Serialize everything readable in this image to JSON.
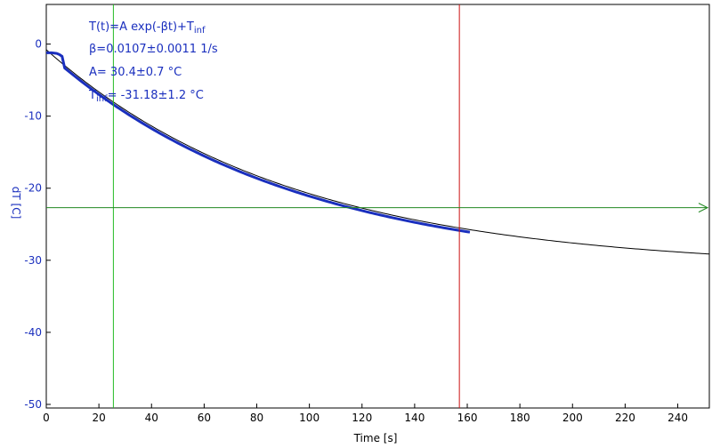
{
  "chart_data": {
    "type": "line",
    "xlabel": "Time [s]",
    "ylabel": "dT [C]",
    "xlim": [
      0,
      252
    ],
    "ylim": [
      -50.5,
      5.5
    ],
    "x_ticks": [
      0,
      20,
      40,
      60,
      80,
      100,
      120,
      140,
      160,
      180,
      200,
      220,
      240
    ],
    "y_ticks": [
      0,
      -10,
      -20,
      -30,
      -40,
      -50
    ],
    "annotations": {
      "model": {
        "text": "T(t)=A exp(-βt)+T",
        "sub": "inf"
      },
      "beta": "β=0.0107±0.0011 1/s",
      "amp": "A= 30.4±0.7 °C",
      "tinf": {
        "text": "T",
        "sub": "inf",
        "rest": "= -31.18±1.2 °C"
      }
    },
    "fit": {
      "A": 30.4,
      "beta": 0.0107,
      "T_inf": -31.18,
      "x_range": [
        0,
        252
      ]
    },
    "measured": {
      "x_range": [
        0,
        161
      ],
      "start": [
        [
          0,
          -1.2
        ],
        [
          1,
          -1.2
        ],
        [
          2,
          -1.2
        ],
        [
          3,
          -1.25
        ],
        [
          4,
          -1.3
        ],
        [
          5,
          -1.45
        ],
        [
          6,
          -1.7
        ]
      ]
    },
    "cursors": {
      "green_x": 25.5,
      "red_x": 157,
      "horizontal_y": -22.7
    },
    "colors": {
      "measured": "#1a2fbe",
      "fit": "#000000",
      "label": "#1a2fbe",
      "green": "#22bb22",
      "red": "#cc1111",
      "hline": "#228822",
      "axis": "#000000"
    }
  }
}
